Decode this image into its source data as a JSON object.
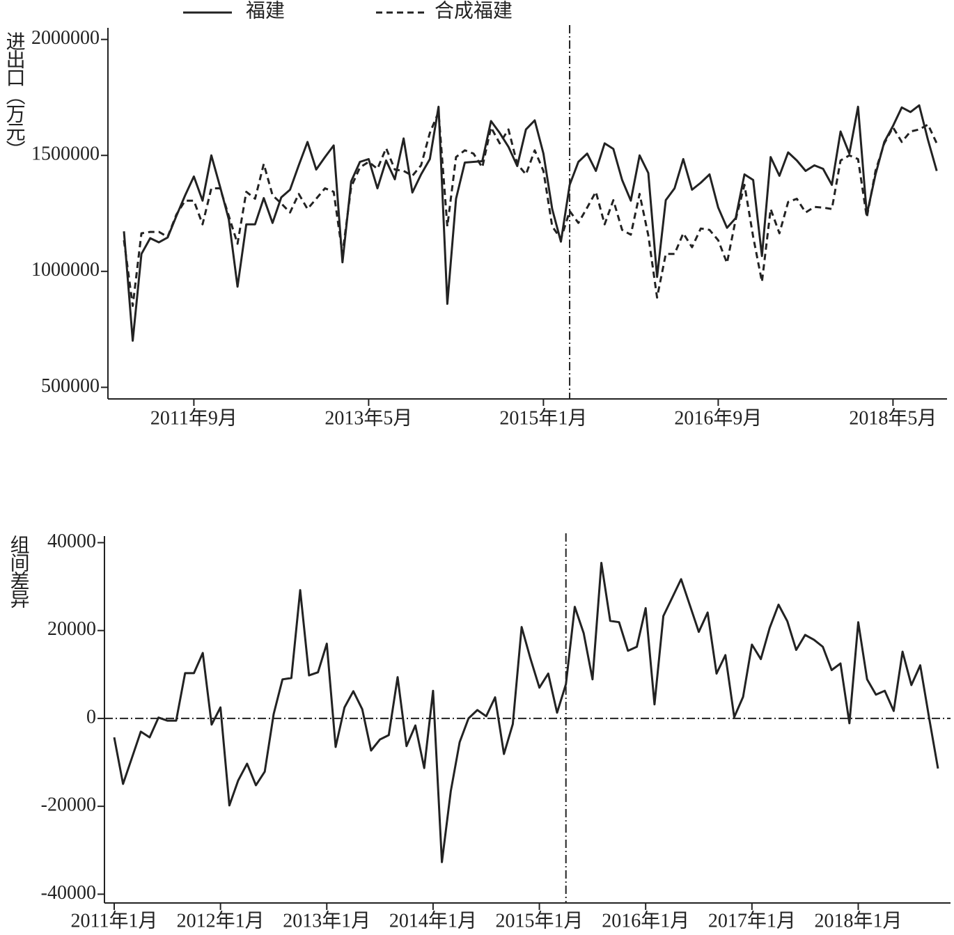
{
  "chart_data": [
    {
      "type": "line",
      "ylabel": "进出口（万元）",
      "categories": [
        null,
        null,
        null,
        null,
        null,
        null,
        null,
        null,
        "2011年9月",
        null,
        null,
        null,
        null,
        null,
        null,
        null,
        null,
        null,
        null,
        null,
        null,
        null,
        null,
        null,
        null,
        null,
        null,
        null,
        "2013年5月",
        null,
        null,
        null,
        null,
        null,
        null,
        null,
        null,
        null,
        null,
        null,
        null,
        null,
        null,
        null,
        null,
        null,
        null,
        null,
        "2015年1月",
        null,
        null,
        null,
        null,
        null,
        null,
        null,
        null,
        null,
        null,
        null,
        null,
        null,
        null,
        null,
        null,
        null,
        null,
        null,
        "2016年9月",
        null,
        null,
        null,
        null,
        null,
        null,
        null,
        null,
        null,
        null,
        null,
        null,
        null,
        null,
        null,
        null,
        null,
        null,
        null,
        "2018年5月",
        null,
        null,
        null,
        null,
        null
      ],
      "series": [
        {
          "name": "福建",
          "color": "#222222",
          "style": "solid",
          "values": [
            1173000,
            701000,
            1075000,
            1143000,
            1125000,
            1146000,
            1239000,
            1328000,
            1409000,
            1305000,
            1500000,
            1364000,
            1224000,
            934000,
            1203000,
            1203000,
            1316000,
            1209000,
            1319000,
            1352000,
            1457000,
            1558000,
            1439000,
            1493000,
            1543000,
            1039000,
            1388000,
            1472000,
            1484000,
            1358000,
            1478000,
            1397000,
            1573000,
            1340000,
            1418000,
            1484000,
            1710000,
            860000,
            1313000,
            1469000,
            1472000,
            1475000,
            1648000,
            1597000,
            1537000,
            1454000,
            1612000,
            1651000,
            1508000,
            1269000,
            1128000,
            1373000,
            1472000,
            1508000,
            1433000,
            1552000,
            1528000,
            1394000,
            1305000,
            1500000,
            1424000,
            976000,
            1307000,
            1358000,
            1484000,
            1352000,
            1382000,
            1418000,
            1275000,
            1188000,
            1230000,
            1418000,
            1394000,
            1066000,
            1493000,
            1412000,
            1513000,
            1478000,
            1433000,
            1457000,
            1442000,
            1373000,
            1603000,
            1508000,
            1710000,
            1245000,
            1418000,
            1558000,
            1627000,
            1707000,
            1687000,
            1716000,
            1567000,
            1433000
          ]
        },
        {
          "name": "合成福建",
          "color": "#222222",
          "style": "dashed",
          "values": [
            1134000,
            851000,
            1164000,
            1170000,
            1170000,
            1149000,
            1245000,
            1305000,
            1305000,
            1203000,
            1358000,
            1358000,
            1239000,
            1119000,
            1343000,
            1313000,
            1463000,
            1328000,
            1293000,
            1254000,
            1334000,
            1269000,
            1313000,
            1358000,
            1343000,
            1075000,
            1364000,
            1448000,
            1472000,
            1442000,
            1531000,
            1439000,
            1433000,
            1412000,
            1457000,
            1597000,
            1687000,
            1194000,
            1493000,
            1522000,
            1508000,
            1448000,
            1621000,
            1552000,
            1612000,
            1463000,
            1418000,
            1522000,
            1433000,
            1194000,
            1140000,
            1260000,
            1209000,
            1275000,
            1343000,
            1203000,
            1307000,
            1179000,
            1158000,
            1334000,
            1155000,
            887000,
            1075000,
            1075000,
            1164000,
            1104000,
            1185000,
            1179000,
            1134000,
            1036000,
            1224000,
            1373000,
            1149000,
            955000,
            1269000,
            1164000,
            1299000,
            1313000,
            1254000,
            1278000,
            1275000,
            1269000,
            1478000,
            1500000,
            1484000,
            1233000,
            1433000,
            1552000,
            1621000,
            1558000,
            1603000,
            1612000,
            1633000,
            1552000
          ]
        }
      ],
      "ylim": [
        450000,
        2050000
      ],
      "yticks": [
        500000,
        1000000,
        1500000,
        2000000
      ],
      "vline": 51
    },
    {
      "type": "line",
      "ylabel": "组间差异",
      "categories": [
        "2011年1月",
        null,
        null,
        null,
        null,
        null,
        null,
        null,
        null,
        null,
        null,
        null,
        "2012年1月",
        null,
        null,
        null,
        null,
        null,
        null,
        null,
        null,
        null,
        null,
        null,
        "2013年1月",
        null,
        null,
        null,
        null,
        null,
        null,
        null,
        null,
        null,
        null,
        null,
        "2014年1月",
        null,
        null,
        null,
        null,
        null,
        null,
        null,
        null,
        null,
        null,
        null,
        "2015年1月",
        null,
        null,
        null,
        null,
        null,
        null,
        null,
        null,
        null,
        null,
        null,
        "2016年1月",
        null,
        null,
        null,
        null,
        null,
        null,
        null,
        null,
        null,
        null,
        null,
        "2017年1月",
        null,
        null,
        null,
        null,
        null,
        null,
        null,
        null,
        null,
        null,
        null,
        "2018年1月",
        null,
        null,
        null,
        null,
        null,
        null,
        null,
        null,
        null
      ],
      "series": [
        {
          "color": "#222222",
          "style": "solid",
          "values": [
            -4300,
            -14900,
            -9000,
            -3000,
            -4300,
            200,
            -500,
            -500,
            10300,
            10300,
            14900,
            -1400,
            2500,
            -19800,
            -14100,
            -10300,
            -15200,
            -12100,
            1000,
            8900,
            9200,
            29200,
            9800,
            10500,
            17000,
            -6500,
            2500,
            6200,
            2100,
            -7300,
            -4800,
            -3800,
            9400,
            -6300,
            -1600,
            -11300,
            6300,
            -32700,
            -16500,
            -5400,
            0,
            1900,
            500,
            4800,
            -8100,
            -1300,
            20800,
            13600,
            7000,
            10200,
            1300,
            7800,
            25400,
            19400,
            8900,
            35400,
            22200,
            21900,
            15400,
            16300,
            25100,
            3200,
            23300,
            27500,
            31700,
            25700,
            19700,
            24100,
            10200,
            14400,
            300,
            4900,
            16800,
            13500,
            20600,
            25900,
            22100,
            15600,
            19000,
            17900,
            16300,
            11000,
            12500,
            -1100,
            21900,
            8900,
            5400,
            6300,
            1700,
            15200,
            7600,
            12100,
            200,
            -11400
          ]
        }
      ],
      "ylim": [
        -42000,
        41500
      ],
      "yticks": [
        -40000,
        -20000,
        0,
        20000,
        40000
      ],
      "vline": 51,
      "hline": 0
    }
  ]
}
